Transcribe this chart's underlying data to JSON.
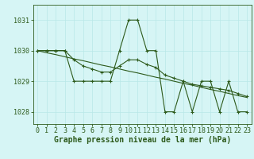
{
  "hours": [
    0,
    1,
    2,
    3,
    4,
    5,
    6,
    7,
    8,
    9,
    10,
    11,
    12,
    13,
    14,
    15,
    16,
    17,
    18,
    19,
    20,
    21,
    22,
    23
  ],
  "line1": [
    1030,
    1030,
    1030,
    1030,
    1029,
    1029,
    1029,
    1029,
    1029,
    1030,
    1031,
    1031,
    1030,
    1030,
    1028,
    1028,
    1029,
    1028,
    1029,
    1029,
    1028,
    1029,
    1028,
    1028
  ],
  "line2": [
    1030,
    1030,
    1030,
    1030,
    1029.7,
    1029.5,
    1029.4,
    1029.3,
    1029.3,
    1029.5,
    1029.7,
    1029.7,
    1029.55,
    1029.45,
    1029.2,
    1029.1,
    1029.0,
    1028.9,
    1028.85,
    1028.8,
    1028.75,
    1028.7,
    1028.6,
    1028.5
  ],
  "line3": [
    1030,
    1029.93,
    1029.87,
    1029.8,
    1029.73,
    1029.67,
    1029.6,
    1029.53,
    1029.47,
    1029.4,
    1029.33,
    1029.27,
    1029.2,
    1029.13,
    1029.07,
    1029.0,
    1028.93,
    1028.87,
    1028.8,
    1028.73,
    1028.67,
    1028.6,
    1028.53,
    1028.47
  ],
  "line_color": "#2d5a1b",
  "bg_color": "#d6f5f5",
  "grid_color": "#b8e8e8",
  "ylabel_ticks": [
    1028,
    1029,
    1030,
    1031
  ],
  "ylim": [
    1027.6,
    1031.5
  ],
  "xlim": [
    -0.5,
    23.5
  ],
  "xlabel": "Graphe pression niveau de la mer (hPa)",
  "tick_fontsize": 6.0,
  "xlabel_fontsize": 7.0,
  "marker": "+",
  "markersize": 3,
  "linewidth": 0.8
}
